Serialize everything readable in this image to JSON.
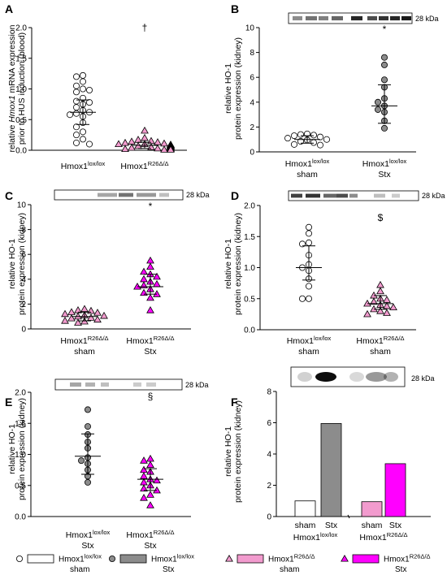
{
  "colors": {
    "white": "#ffffff",
    "grey": "#8c8c8c",
    "pink": "#f29bce",
    "magenta": "#ff00ff",
    "black": "#000000"
  },
  "legend": [
    {
      "marker": "circle",
      "fill": "white",
      "bar": "white",
      "label": "Hmox1",
      "sup": "lox/lox",
      "sub": "sham"
    },
    {
      "marker": "circle",
      "fill": "grey",
      "bar": "grey",
      "label": "Hmox1",
      "sup": "lox/lox",
      "sub": "Stx"
    },
    {
      "marker": "triangle",
      "fill": "pink",
      "bar": "pink",
      "label": "Hmox1",
      "sup": "R26Δ/Δ",
      "sub": "sham"
    },
    {
      "marker": "triangle",
      "fill": "magenta",
      "bar": "magenta",
      "label": "Hmox1",
      "sup": "R26Δ/Δ",
      "sub": "Stx"
    }
  ],
  "blot_label": "28 kDa",
  "chart_data": [
    {
      "panel": "A",
      "type": "scatter",
      "ylabel_pre": "relative ",
      "ylabel_italic": "Hmox1",
      "ylabel_post": " mRNA expression",
      "ylabel2": "prior to HUS induction (blood)",
      "ylim": [
        0,
        2.0
      ],
      "yticks": [
        "0.0",
        "0.5",
        "1.0",
        "1.5",
        "2.0"
      ],
      "ytick_values": [
        0,
        0.5,
        1.0,
        1.5,
        2.0
      ],
      "significance": "†",
      "groups": [
        {
          "label": "Hmox1",
          "sup": "lox/lox",
          "sub": "",
          "marker": "circle",
          "fill": "white",
          "mean": 0.62,
          "sd_low": 0.42,
          "sd_high": 0.82,
          "values": [
            1.22,
            1.2,
            1.12,
            1.05,
            1.0,
            0.98,
            0.95,
            0.85,
            0.8,
            0.78,
            0.75,
            0.7,
            0.65,
            0.62,
            0.6,
            0.58,
            0.55,
            0.45,
            0.38,
            0.3,
            0.25,
            0.18,
            0.12,
            0.1
          ]
        },
        {
          "label": "Hmox1",
          "sup": "R26Δ/Δ",
          "sub": "",
          "marker": "triangle",
          "fill": "pink",
          "mean": 0.08,
          "sd_low": 0.03,
          "sd_high": 0.13,
          "values": [
            0.32,
            0.2,
            0.17,
            0.15,
            0.14,
            0.13,
            0.12,
            0.11,
            0.1,
            0.1,
            0.09,
            0.09,
            0.08,
            0.08,
            0.07,
            0.07,
            0.06,
            0.06,
            0.05,
            0.05,
            0.04,
            0.04,
            0.03,
            0.03,
            0.02,
            0.02,
            0.01,
            0.01
          ]
        }
      ]
    },
    {
      "panel": "B",
      "type": "scatter",
      "ylabel": "relative HO-1",
      "ylabel2": "protein expression (kidney)",
      "ylim": [
        0,
        10
      ],
      "yticks": [
        "0",
        "2",
        "4",
        "6",
        "8",
        "10"
      ],
      "ytick_values": [
        0,
        2,
        4,
        6,
        8,
        10
      ],
      "significance": "*",
      "groups": [
        {
          "label": "Hmox1",
          "sup": "lox/lox",
          "sub": "sham",
          "marker": "circle",
          "fill": "white",
          "mean": 1.0,
          "sd_low": 0.7,
          "sd_high": 1.3,
          "values": [
            1.45,
            1.4,
            1.35,
            1.3,
            1.2,
            1.1,
            1.0,
            0.95,
            0.85,
            0.75,
            0.6,
            0.55
          ]
        },
        {
          "label": "Hmox1",
          "sup": "lox/lox",
          "sub": "Stx",
          "marker": "circle",
          "fill": "grey",
          "mean": 3.7,
          "sd_low": 2.3,
          "sd_high": 5.4,
          "values": [
            7.6,
            7.0,
            5.8,
            5.2,
            4.3,
            4.0,
            3.7,
            3.4,
            3.2,
            2.5,
            1.9
          ]
        }
      ]
    },
    {
      "panel": "C",
      "type": "scatter",
      "ylabel": "relative HO-1",
      "ylabel2": "protein expression (kidney)",
      "ylim": [
        0,
        10
      ],
      "yticks": [
        "0",
        "2",
        "4",
        "6",
        "8",
        "10"
      ],
      "ytick_values": [
        0,
        2,
        4,
        6,
        8,
        10
      ],
      "significance": "*",
      "groups": [
        {
          "label": "Hmox1",
          "sup": "R26Δ/Δ",
          "sub": "sham",
          "marker": "triangle",
          "fill": "pink",
          "mean": 1.0,
          "sd_low": 0.65,
          "sd_high": 1.35,
          "values": [
            1.6,
            1.5,
            1.45,
            1.35,
            1.3,
            1.2,
            1.1,
            1.05,
            1.0,
            0.9,
            0.85,
            0.75,
            0.65,
            0.6,
            0.5
          ]
        },
        {
          "label": "Hmox1",
          "sup": "R26Δ/Δ",
          "sub": "Stx",
          "marker": "triangle",
          "fill": "magenta",
          "mean": 3.4,
          "sd_low": 2.8,
          "sd_high": 4.4,
          "values": [
            5.5,
            5.0,
            4.6,
            4.4,
            4.2,
            4.0,
            3.8,
            3.6,
            3.5,
            3.4,
            3.2,
            2.9,
            2.8,
            2.5,
            1.5
          ]
        }
      ]
    },
    {
      "panel": "D",
      "type": "scatter",
      "ylabel": "relative HO-1",
      "ylabel2": "protein expression (kidney)",
      "ylim": [
        0,
        2.0
      ],
      "yticks": [
        "0.0",
        "0.5",
        "1.0",
        "1.5",
        "2.0"
      ],
      "ytick_values": [
        0,
        0.5,
        1.0,
        1.5,
        2.0
      ],
      "significance": "$",
      "groups": [
        {
          "label": "Hmox1",
          "sup": "lox/lox",
          "sub": "sham",
          "marker": "circle",
          "fill": "white",
          "mean": 1.0,
          "sd_low": 0.8,
          "sd_high": 1.35,
          "values": [
            1.65,
            1.55,
            1.4,
            1.38,
            1.2,
            1.05,
            1.0,
            0.95,
            0.82,
            0.7,
            0.5,
            0.5
          ]
        },
        {
          "label": "Hmox1",
          "sup": "R26Δ/Δ",
          "sub": "sham",
          "marker": "triangle",
          "fill": "pink",
          "mean": 0.42,
          "sd_low": 0.33,
          "sd_high": 0.55,
          "values": [
            0.72,
            0.62,
            0.55,
            0.5,
            0.48,
            0.45,
            0.42,
            0.4,
            0.38,
            0.36,
            0.33,
            0.3,
            0.27,
            0.25
          ]
        }
      ]
    },
    {
      "panel": "E",
      "type": "scatter",
      "ylabel": "relative HO-1",
      "ylabel2": "protein expression (kidney)",
      "ylim": [
        0,
        2.0
      ],
      "yticks": [
        "0.0",
        "0.5",
        "1.0",
        "1.5",
        "2.0"
      ],
      "ytick_values": [
        0,
        0.5,
        1.0,
        1.5,
        2.0
      ],
      "significance": "§",
      "groups": [
        {
          "label": "Hmox1",
          "sup": "lox/lox",
          "sub": "Stx",
          "marker": "circle",
          "fill": "grey",
          "mean": 0.97,
          "sd_low": 0.68,
          "sd_high": 1.33,
          "values": [
            1.72,
            1.45,
            1.32,
            1.2,
            1.1,
            0.95,
            0.9,
            0.85,
            0.75,
            0.65,
            0.55
          ]
        },
        {
          "label": "Hmox1",
          "sup": "R26Δ/Δ",
          "sub": "Stx",
          "marker": "triangle",
          "fill": "magenta",
          "mean": 0.6,
          "sd_low": 0.42,
          "sd_high": 0.77,
          "values": [
            0.93,
            0.9,
            0.83,
            0.75,
            0.72,
            0.65,
            0.6,
            0.58,
            0.55,
            0.5,
            0.45,
            0.42,
            0.35,
            0.3,
            0.18
          ]
        }
      ]
    },
    {
      "panel": "F",
      "type": "bar",
      "ylabel": "relative HO-1",
      "ylabel2": "protein expression (kidney)",
      "ylim": [
        0,
        8
      ],
      "yticks": [
        "0",
        "2",
        "4",
        "6",
        "8"
      ],
      "ytick_values": [
        0,
        2,
        4,
        6,
        8
      ],
      "categories": [
        "sham",
        "Stx",
        "sham",
        "Stx"
      ],
      "values": [
        1.0,
        5.95,
        0.95,
        3.38
      ],
      "fills": [
        "white",
        "grey",
        "pink",
        "magenta"
      ],
      "group_labels": [
        {
          "label": "Hmox1",
          "sup": "lox/lox"
        },
        {
          "label": "Hmox1",
          "sup": "R26Δ/Δ"
        }
      ]
    }
  ]
}
